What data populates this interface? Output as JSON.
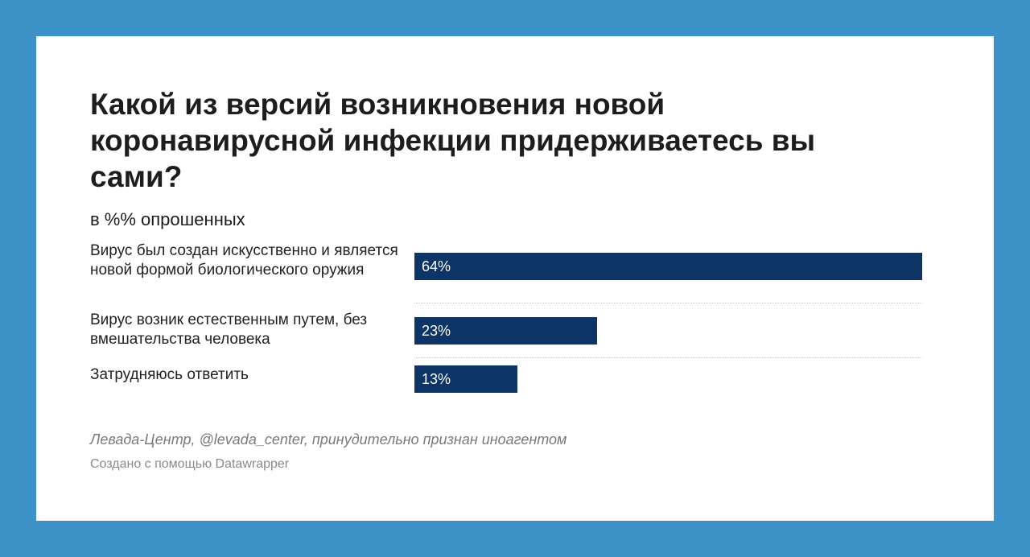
{
  "chart_data": {
    "type": "bar",
    "orientation": "horizontal",
    "title": "Какой из версий возникновения новой коронавирусной инфекции придерживаетесь вы сами?",
    "subtitle": "в %% опрошенных",
    "categories": [
      "Вирус был создан искусственно и является новой формой биологического оружия",
      "Вирус возник естественным путем, без вмешательства человека",
      "Затрудняюсь ответить"
    ],
    "values": [
      64,
      23,
      13
    ],
    "value_labels": [
      "64%",
      "23%",
      "13%"
    ],
    "xlim": [
      0,
      64
    ],
    "grid": false,
    "bar_color": "#0c3466"
  },
  "footer": {
    "source": "Левада-Центр, @levada_center, принудительно признан иноагентом",
    "credit": "Создано с помощью Datawrapper"
  },
  "colors": {
    "background": "#3c92c6",
    "card": "#ffffff",
    "bar": "#0c3466"
  }
}
